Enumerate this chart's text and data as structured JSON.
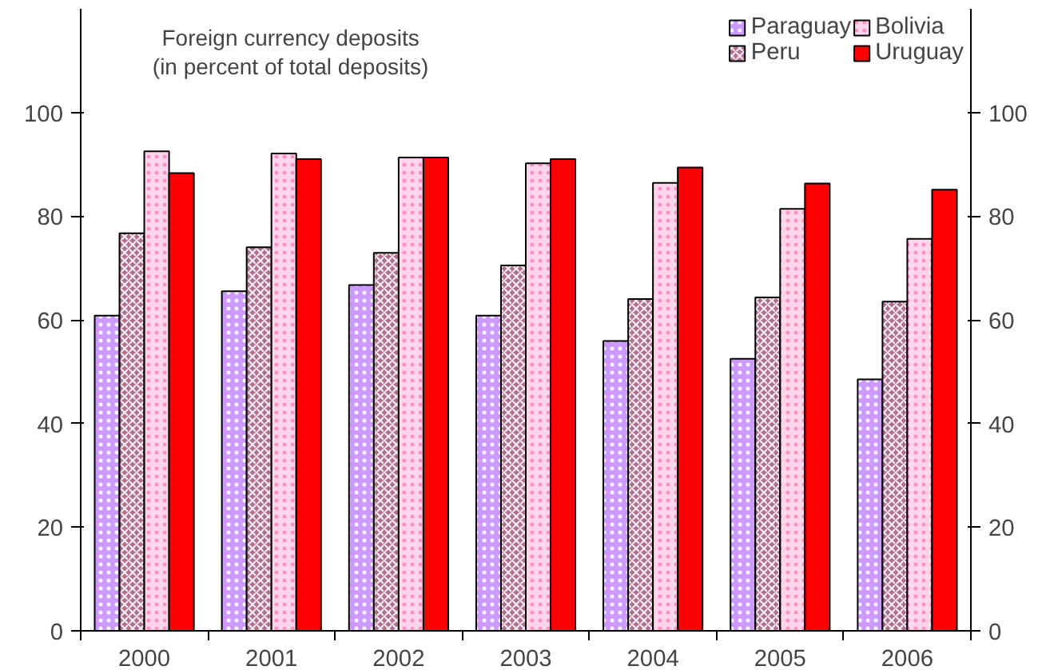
{
  "chart_data": {
    "type": "bar",
    "title": "Foreign currency deposits\n(in percent of total deposits)",
    "categories": [
      "2000",
      "2001",
      "2002",
      "2003",
      "2004",
      "2005",
      "2006"
    ],
    "series": [
      {
        "name": "Paraguay",
        "color": "#cc99ff",
        "values": [
          60.8,
          65.5,
          66.7,
          60.8,
          55.9,
          52.5,
          48.5
        ]
      },
      {
        "name": "Peru",
        "color": "#b0708f",
        "values": [
          76.7,
          74.0,
          72.9,
          70.5,
          64.0,
          64.3,
          63.5
        ]
      },
      {
        "name": "Bolivia",
        "color": "#ffd6ec",
        "values": [
          92.5,
          92.1,
          91.3,
          90.2,
          86.4,
          81.4,
          75.6
        ]
      },
      {
        "name": "Uruguay",
        "color": "#ff0000",
        "values": [
          88.3,
          91.0,
          91.3,
          91.0,
          89.4,
          86.3,
          85.1
        ]
      }
    ],
    "ylim": [
      0,
      120
    ],
    "yticks": [
      0,
      20,
      40,
      60,
      80,
      100
    ],
    "y2lim": [
      0,
      120
    ],
    "y2ticks": [
      0,
      20,
      40,
      60,
      80,
      100
    ],
    "grid": false,
    "legend": "top right"
  }
}
